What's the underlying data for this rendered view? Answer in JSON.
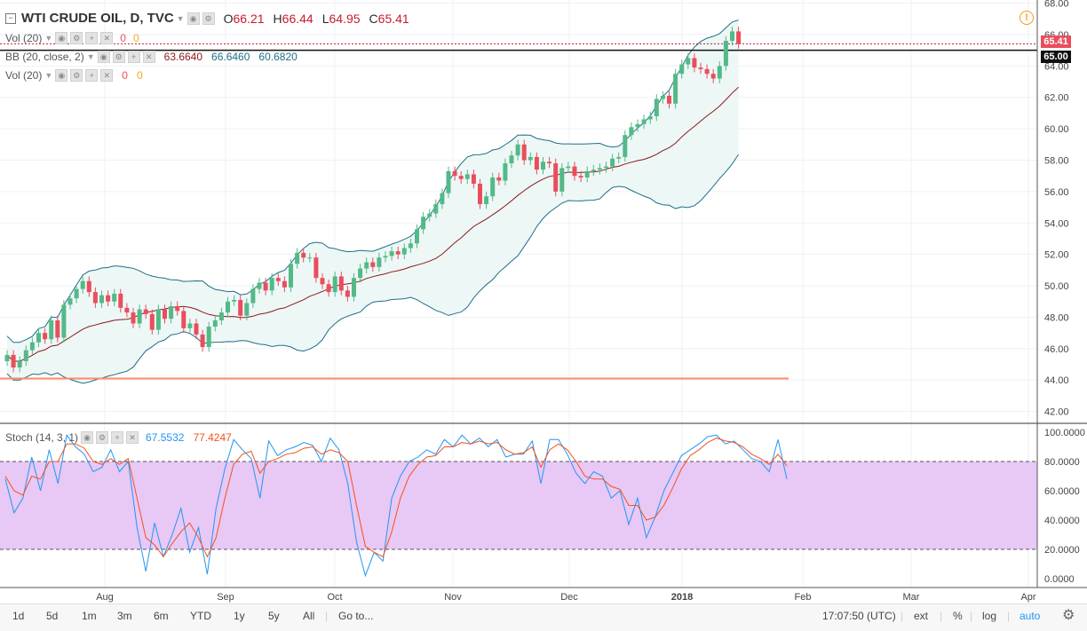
{
  "header": {
    "symbol": "WTI CRUDE OIL, D, TVC",
    "open_label": "O",
    "open": "66.21",
    "high_label": "H",
    "high": "66.44",
    "low_label": "L",
    "low": "64.95",
    "close_label": "C",
    "close": "65.41"
  },
  "indicators": {
    "vol_top": {
      "label": "Vol (20)",
      "v1": "0",
      "v2": "0"
    },
    "bb": {
      "label": "BB (20, close, 2)",
      "basis": "63.6640",
      "upper": "66.6460",
      "lower": "60.6820"
    },
    "vol": {
      "label": "Vol (20)",
      "v1": "0",
      "v2": "0"
    },
    "stoch": {
      "label": "Stoch (14, 3, 1)",
      "k": "67.5532",
      "d": "77.4247"
    }
  },
  "price_tags": {
    "last": "65.41",
    "level": "65.00"
  },
  "toolbar": {
    "ranges": [
      "1d",
      "5d",
      "1m",
      "3m",
      "6m",
      "YTD",
      "1y",
      "5y",
      "All"
    ],
    "goto": "Go to...",
    "time": "17:07:50 (UTC)",
    "right": [
      "ext",
      "%",
      "log",
      "auto"
    ]
  },
  "colors": {
    "up": "#53b987",
    "down": "#eb4d5c",
    "bb_basis": "#8b1a1a",
    "bb_band": "#1f6f86",
    "bb_fill": "#edf7f6",
    "k_line": "#2196f3",
    "d_line": "#f4511e",
    "stoch_fill": "#e8c8f5"
  },
  "chart_data": [
    {
      "type": "candlestick",
      "title": "WTI CRUDE OIL, D, TVC",
      "x_ticks": [
        "Aug",
        "Sep",
        "Oct",
        "Nov",
        "Dec",
        "2018",
        "Feb",
        "Mar",
        "Apr"
      ],
      "y_ticks": [
        "42.00",
        "44.00",
        "46.00",
        "48.00",
        "50.00",
        "52.00",
        "54.00",
        "56.00",
        "58.00",
        "60.00",
        "62.00",
        "64.00",
        "66.00",
        "68.00"
      ],
      "ylim": [
        41.3,
        68.2
      ],
      "horizontal_level": 44.1,
      "closes": [
        45.6,
        44.8,
        45.2,
        45.9,
        46.4,
        47.0,
        46.6,
        47.8,
        46.7,
        48.8,
        49.2,
        49.8,
        50.3,
        49.6,
        48.9,
        49.4,
        49.0,
        49.5,
        48.6,
        48.3,
        47.6,
        48.5,
        48.2,
        47.2,
        48.5,
        47.9,
        48.7,
        48.4,
        47.3,
        47.6,
        46.9,
        46.1,
        47.4,
        47.8,
        48.3,
        49.0,
        49.1,
        48.1,
        48.9,
        49.8,
        50.2,
        49.7,
        50.5,
        50.3,
        49.9,
        51.4,
        52.1,
        51.8,
        51.8,
        50.5,
        50.1,
        49.6,
        50.6,
        49.7,
        49.3,
        50.5,
        51.1,
        51.5,
        51.2,
        51.8,
        51.9,
        52.2,
        52.0,
        52.4,
        52.7,
        53.6,
        54.4,
        54.6,
        55.2,
        55.9,
        57.3,
        57.0,
        56.8,
        57.1,
        56.5,
        55.2,
        55.7,
        56.9,
        56.7,
        57.8,
        58.3,
        59.0,
        58.0,
        58.2,
        57.4,
        57.9,
        57.8,
        56.0,
        57.5,
        57.6,
        57.0,
        56.9,
        57.3,
        57.4,
        57.5,
        57.6,
        58.1,
        58.2,
        59.6,
        60.1,
        60.3,
        60.6,
        60.8,
        61.9,
        62.1,
        61.6,
        63.5,
        64.1,
        64.5,
        63.9,
        63.8,
        63.5,
        63.2,
        64.0,
        65.6,
        66.2,
        65.4
      ],
      "k_line_approx": [
        68,
        45,
        55,
        83,
        60,
        88,
        65,
        98,
        90,
        85,
        73,
        76,
        88,
        73,
        80,
        35,
        5,
        38,
        15,
        30,
        48,
        18,
        35,
        3,
        48,
        75,
        95,
        88,
        82,
        55,
        94,
        84,
        88,
        90,
        93,
        91,
        80,
        96,
        88,
        65,
        25,
        2,
        18,
        12,
        55,
        70,
        80,
        83,
        88,
        85,
        95,
        90,
        98,
        92,
        96,
        90,
        95,
        83,
        85,
        85,
        94,
        65,
        95,
        95,
        85,
        72,
        65,
        73,
        70,
        55,
        60,
        37,
        55,
        28,
        42,
        60,
        72,
        84,
        88,
        92,
        97,
        98,
        92,
        94,
        88,
        82,
        80,
        73,
        95,
        68
      ],
      "d_line_approx": [
        70,
        60,
        57,
        70,
        68,
        80,
        80,
        92,
        92,
        89,
        80,
        78,
        82,
        78,
        82,
        55,
        28,
        23,
        15,
        24,
        32,
        38,
        28,
        15,
        28,
        55,
        78,
        85,
        87,
        72,
        80,
        82,
        85,
        86,
        89,
        90,
        85,
        88,
        86,
        80,
        50,
        22,
        18,
        15,
        32,
        55,
        70,
        78,
        83,
        84,
        90,
        90,
        93,
        92,
        94,
        92,
        93,
        88,
        85,
        86,
        90,
        76,
        88,
        92,
        88,
        80,
        70,
        68,
        68,
        63,
        61,
        50,
        50,
        40,
        42,
        50,
        62,
        75,
        84,
        88,
        93,
        96,
        94,
        93,
        90,
        85,
        82,
        78,
        85,
        77
      ],
      "stoch_y_ticks": [
        "0.0000",
        "20.0000",
        "40.0000",
        "60.0000",
        "80.0000",
        "100.0000"
      ],
      "stoch_band": [
        20,
        80
      ]
    }
  ]
}
